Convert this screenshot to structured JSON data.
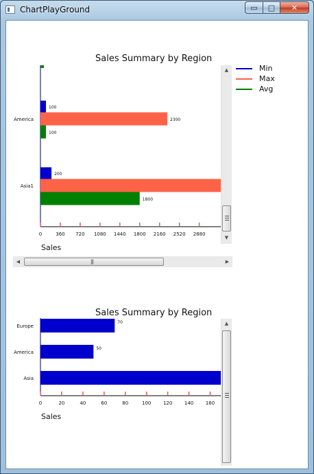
{
  "window": {
    "title": "ChartPlayGround",
    "buttons": {
      "minimize": "▭",
      "maximize": "□",
      "close": "✕"
    }
  },
  "colors": {
    "min": "#0000cc",
    "max": "#ff6347",
    "avg": "#008000",
    "axis_tick": "#e05a5a"
  },
  "chart_data": [
    {
      "type": "bar",
      "orientation": "horizontal",
      "title": "Sales Summary by Region",
      "xlabel": "Sales",
      "ylabel": "",
      "categories": [
        "America",
        "Asia1"
      ],
      "series": [
        {
          "name": "Min",
          "values": [
            100,
            200
          ]
        },
        {
          "name": "Max",
          "values": [
            2300,
            null
          ]
        },
        {
          "name": "Avg",
          "values": [
            100,
            1800
          ]
        }
      ],
      "x_ticks": [
        0,
        360,
        720,
        1080,
        1440,
        1800,
        2160,
        2520,
        2880
      ],
      "xlim": [
        0,
        3270
      ],
      "legend": "right",
      "grid": false
    },
    {
      "type": "bar",
      "orientation": "horizontal",
      "title": "Sales Summary by Region",
      "xlabel": "Sales",
      "ylabel": "",
      "categories": [
        "Europe",
        "America",
        "Asia"
      ],
      "values": [
        70,
        50,
        null
      ],
      "x_ticks": [
        0,
        20,
        40,
        60,
        80,
        100,
        120,
        140,
        160
      ],
      "xlim": [
        0,
        170
      ],
      "grid": false
    }
  ]
}
